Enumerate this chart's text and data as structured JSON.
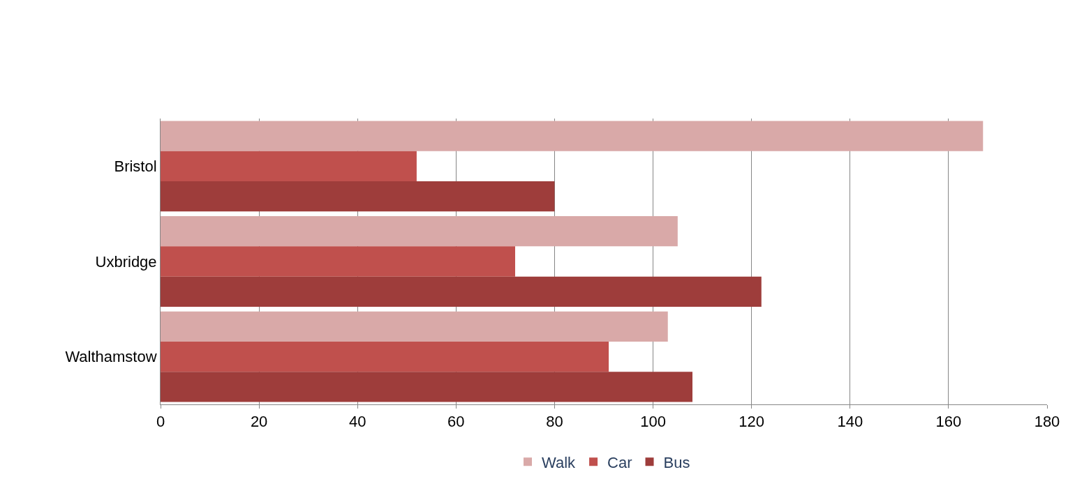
{
  "chart_data": {
    "type": "bar",
    "orientation": "horizontal",
    "categories": [
      "Bristol",
      "Uxbridge",
      "Walthamstow"
    ],
    "series": [
      {
        "name": "Walk",
        "color": "#d9a9a8",
        "values": [
          167,
          105,
          103
        ]
      },
      {
        "name": "Car",
        "color": "#c0504d",
        "values": [
          52,
          72,
          91
        ]
      },
      {
        "name": "Bus",
        "color": "#9e3d3b",
        "values": [
          80,
          122,
          108
        ]
      }
    ],
    "xlim": [
      0,
      180
    ],
    "xticks": [
      0,
      20,
      40,
      60,
      80,
      100,
      120,
      140,
      160,
      180
    ],
    "grid": "x",
    "legend": "bottom"
  }
}
